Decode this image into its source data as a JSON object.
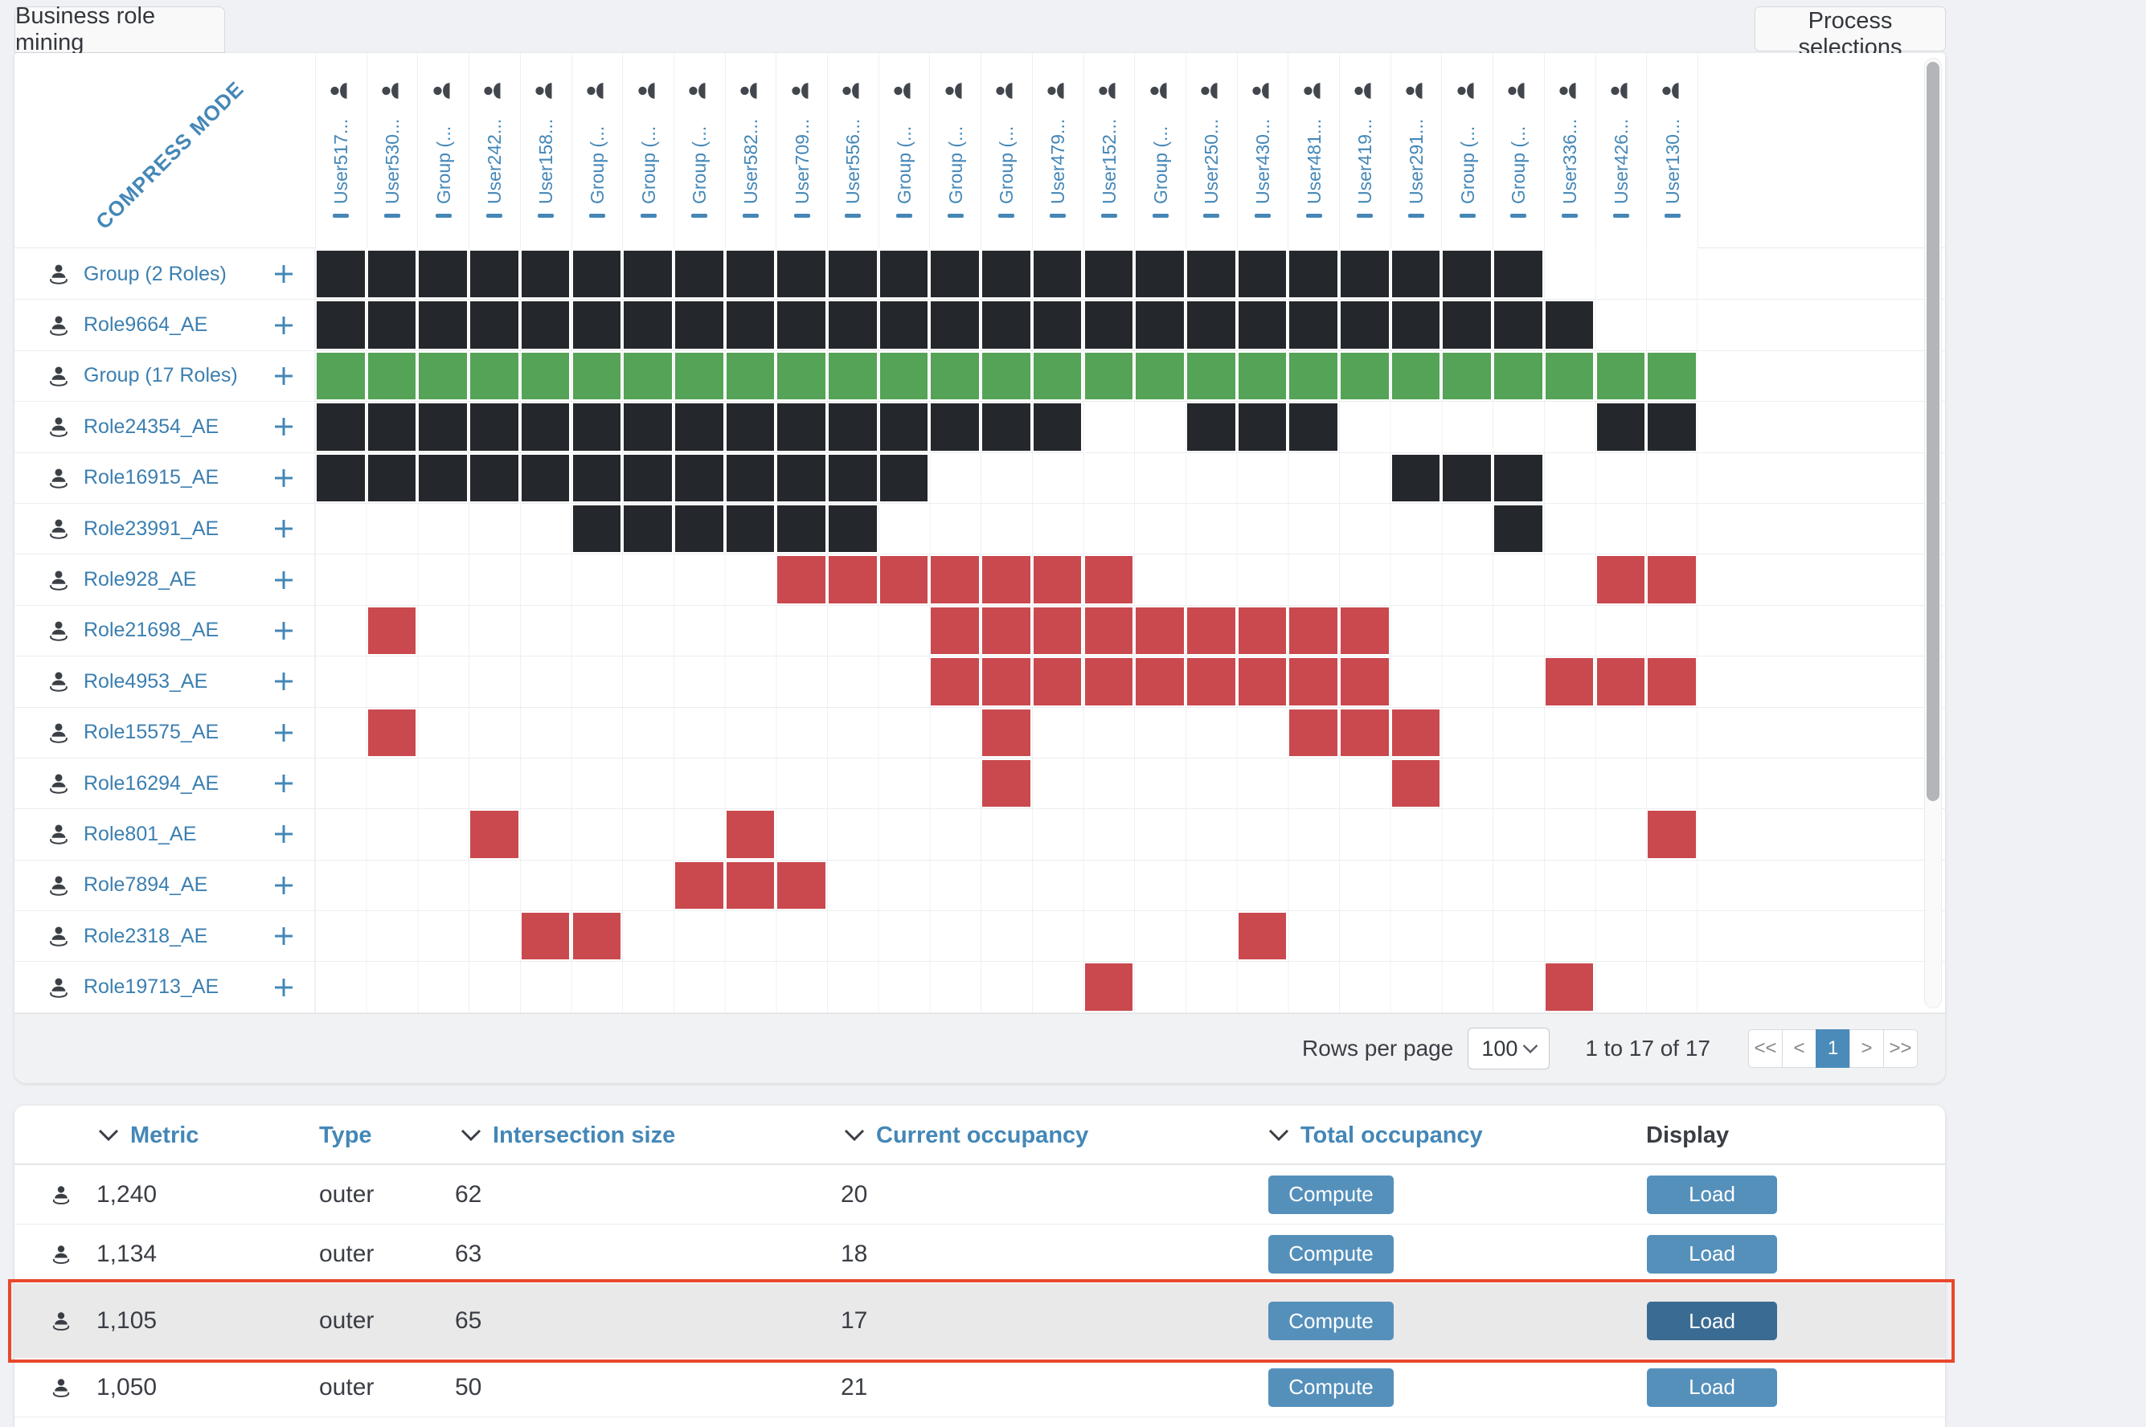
{
  "tab": {
    "label": "Business role mining"
  },
  "process_button": {
    "label": "Process selections"
  },
  "colors": {
    "cell_filled": "#24272b",
    "cell_group_row": "#54a356",
    "cell_over_assignment": "#c9494e",
    "accent_blue": "#4487b7",
    "button_blue": "#5590bb",
    "button_blue_dark": "#3a6b92",
    "highlight_border": "#e8482c",
    "active_page_bg": "#4b8bb9"
  },
  "matrix": {
    "corner_label": "COMPRESS MODE",
    "columns": [
      "User517...",
      "User530...",
      "Group (...",
      "User242...",
      "User158...",
      "Group (...",
      "Group (...",
      "Group (...",
      "User582...",
      "User709...",
      "User556...",
      "Group (...",
      "Group (...",
      "Group (...",
      "User479...",
      "User152...",
      "Group (...",
      "User250...",
      "User430...",
      "User481...",
      "User419...",
      "User291...",
      "Group (...",
      "Group (...",
      "User336...",
      "User426...",
      "User130..."
    ],
    "rows": [
      {
        "label": "Group (2 Roles)",
        "cells": "dddddddddddddddddddddddd..."
      },
      {
        "label": "Role9664_AE",
        "cells": "ddddddddddddddddddddddddd.."
      },
      {
        "label": "Group (17 Roles)",
        "cells": "ggggggggggggggggggggggggggg"
      },
      {
        "label": "Role24354_AE",
        "cells": "ddddddddddddddd..ddd.....dd"
      },
      {
        "label": "Role16915_AE",
        "cells": "dddddddddddd.........ddd..."
      },
      {
        "label": "Role23991_AE",
        "cells": ".....dddddd............d..."
      },
      {
        "label": "Role928_AE",
        "cells": ".........rrrrrrr.........rr"
      },
      {
        "label": "Role21698_AE",
        "cells": ".r..........rrrrrrrrr......"
      },
      {
        "label": "Role4953_AE",
        "cells": "............rrrrrrrrr...rrr"
      },
      {
        "label": "Role15575_AE",
        "cells": ".r...........r.....rrr....."
      },
      {
        "label": "Role16294_AE",
        "cells": ".............r.......r....."
      },
      {
        "label": "Role801_AE",
        "cells": "...r....r.................r"
      },
      {
        "label": "Role7894_AE",
        "cells": ".......rrr................."
      },
      {
        "label": "Role2318_AE",
        "cells": "....rr............r........"
      },
      {
        "label": "Role19713_AE",
        "cells": "...............r........r.."
      }
    ]
  },
  "pagination": {
    "rows_per_page_label": "Rows per page",
    "rows_per_page_value": "100",
    "range_label": "1 to 17 of 17",
    "pager_items": [
      "<<",
      "<",
      "1",
      ">",
      ">>"
    ],
    "active_page": "1"
  },
  "table": {
    "headers": [
      {
        "label": "Metric",
        "sortable": true
      },
      {
        "label": "Type",
        "sortable": false
      },
      {
        "label": "Intersection size",
        "sortable": true
      },
      {
        "label": "Current occupancy",
        "sortable": true
      },
      {
        "label": "Total occupancy",
        "sortable": true
      },
      {
        "label": "Display",
        "sortable": false
      }
    ],
    "buttons": {
      "compute": "Compute",
      "load": "Load"
    },
    "rows": [
      {
        "metric": "1,240",
        "type": "outer",
        "intersection_size": "62",
        "current_occupancy": "20",
        "highlighted": false,
        "load_active": false
      },
      {
        "metric": "1,134",
        "type": "outer",
        "intersection_size": "63",
        "current_occupancy": "18",
        "highlighted": false,
        "load_active": false
      },
      {
        "metric": "1,105",
        "type": "outer",
        "intersection_size": "65",
        "current_occupancy": "17",
        "highlighted": true,
        "load_active": true
      },
      {
        "metric": "1,050",
        "type": "outer",
        "intersection_size": "50",
        "current_occupancy": "21",
        "highlighted": false,
        "load_active": false
      }
    ]
  }
}
